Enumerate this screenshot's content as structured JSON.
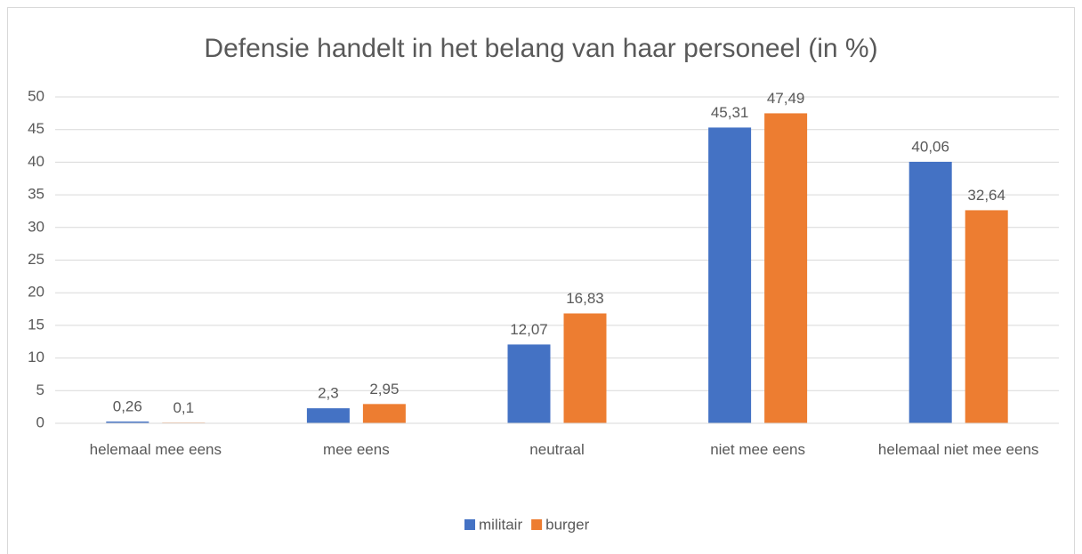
{
  "chart_data": {
    "type": "bar",
    "title": "Defensie handelt in het belang van haar personeel (in %)",
    "categories": [
      "helemaal mee eens",
      "mee eens",
      "neutraal",
      "niet mee eens",
      "helemaal niet mee eens"
    ],
    "series": [
      {
        "name": "militair",
        "color": "#4472c4",
        "values": [
          0.26,
          2.3,
          12.07,
          45.31,
          40.06
        ],
        "value_labels": [
          "0,26",
          "2,3",
          "12,07",
          "45,31",
          "40,06"
        ]
      },
      {
        "name": "burger",
        "color": "#ed7d31",
        "values": [
          0.1,
          2.95,
          16.83,
          47.49,
          32.64
        ],
        "value_labels": [
          "0,1",
          "2,95",
          "16,83",
          "47,49",
          "32,64"
        ]
      }
    ],
    "ylim": [
      0,
      50
    ],
    "yticks": [
      0,
      5,
      10,
      15,
      20,
      25,
      30,
      35,
      40,
      45,
      50
    ],
    "grid": true,
    "legend": "bottom"
  }
}
